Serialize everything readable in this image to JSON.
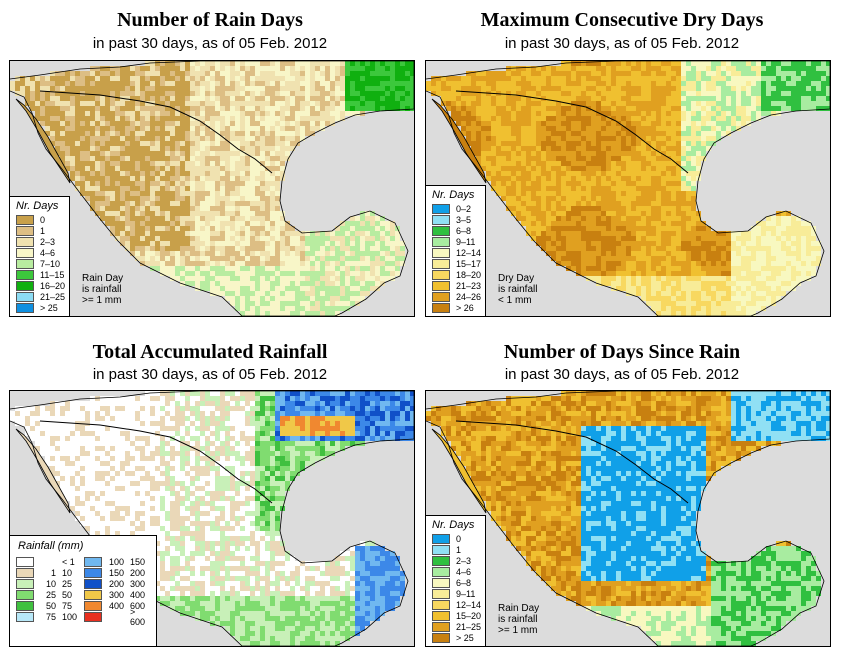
{
  "colors": {
    "ocean": "#dcdcdc",
    "border": "#000000"
  },
  "panels": [
    {
      "id": "rain-days",
      "title": "Number of Rain Days",
      "subtitle": "in past 30 days, as of  05 Feb. 2012",
      "legend_title": "Nr. Days",
      "legend": [
        {
          "label": "0",
          "color": "#c8a04a"
        },
        {
          "label": "1",
          "color": "#ddbe84"
        },
        {
          "label": "2–3",
          "color": "#f0e2b0"
        },
        {
          "label": "4–6",
          "color": "#f8f6c8"
        },
        {
          "label": "7–10",
          "color": "#b8eca0"
        },
        {
          "label": "11–15",
          "color": "#3cc83c"
        },
        {
          "label": "16–20",
          "color": "#10b010"
        },
        {
          "label": "21–25",
          "color": "#8cdcf4"
        },
        {
          "label": "> 25",
          "color": "#1090e0"
        }
      ],
      "note": [
        "Rain Day",
        "is rainfall",
        ">= 1 mm"
      ]
    },
    {
      "id": "dry-days",
      "title": "Maximum Consecutive Dry Days",
      "subtitle": "in past 30 days, as of  05 Feb. 2012",
      "legend_title": "Nr. Days",
      "legend": [
        {
          "label": "0–2",
          "color": "#10a0e8"
        },
        {
          "label": "3–5",
          "color": "#90e0f4"
        },
        {
          "label": "6–8",
          "color": "#30c040"
        },
        {
          "label": "9–11",
          "color": "#a8eca0"
        },
        {
          "label": "12–14",
          "color": "#f8f8c0"
        },
        {
          "label": "15–17",
          "color": "#f8ec98"
        },
        {
          "label": "18–20",
          "color": "#f8d860"
        },
        {
          "label": "21–23",
          "color": "#f0c030"
        },
        {
          "label": "24–26",
          "color": "#e0a020"
        },
        {
          "label": "> 26",
          "color": "#c88010"
        }
      ],
      "note": [
        "Dry Day",
        "is rainfall",
        "< 1 mm"
      ]
    },
    {
      "id": "rainfall",
      "title": "Total Accumulated Rainfall",
      "subtitle": "in past 30 days, as of  05 Feb. 2012",
      "legend_title": "Rainfall (mm)",
      "legend_left": [
        {
          "from": "",
          "to": "< 1",
          "color": "#ffffff"
        },
        {
          "from": "1",
          "to": "10",
          "color": "#ead8b8"
        },
        {
          "from": "10",
          "to": "25",
          "color": "#c8f0b8"
        },
        {
          "from": "25",
          "to": "50",
          "color": "#80dc70"
        },
        {
          "from": "50",
          "to": "75",
          "color": "#40c040"
        },
        {
          "from": "75",
          "to": "100",
          "color": "#b8e8f8"
        }
      ],
      "legend_right": [
        {
          "from": "100",
          "to": "150",
          "color": "#70b8f0"
        },
        {
          "from": "150",
          "to": "200",
          "color": "#3c88e8"
        },
        {
          "from": "200",
          "to": "300",
          "color": "#1050c8"
        },
        {
          "from": "300",
          "to": "400",
          "color": "#f0c848"
        },
        {
          "from": "400",
          "to": "600",
          "color": "#f08830"
        },
        {
          "from": "",
          "to": "> 600",
          "color": "#e83020"
        }
      ]
    },
    {
      "id": "since-rain",
      "title": "Number of Days Since Rain",
      "subtitle": "in past 30 days, as of  05 Feb. 2012",
      "legend_title": "Nr. Days",
      "legend": [
        {
          "label": "0",
          "color": "#10a0e8"
        },
        {
          "label": "1",
          "color": "#90e0f4"
        },
        {
          "label": "2–3",
          "color": "#30c040"
        },
        {
          "label": "4–6",
          "color": "#a8eca0"
        },
        {
          "label": "6–8",
          "color": "#f8f8c0"
        },
        {
          "label": "9–11",
          "color": "#f8ec98"
        },
        {
          "label": "12–14",
          "color": "#f8d860"
        },
        {
          "label": "15–20",
          "color": "#f0c030"
        },
        {
          "label": "21–25",
          "color": "#e0a020"
        },
        {
          "label": "> 25",
          "color": "#c88010"
        }
      ],
      "note": [
        "Rain Day",
        "is rainfall",
        ">= 1 mm"
      ]
    }
  ]
}
